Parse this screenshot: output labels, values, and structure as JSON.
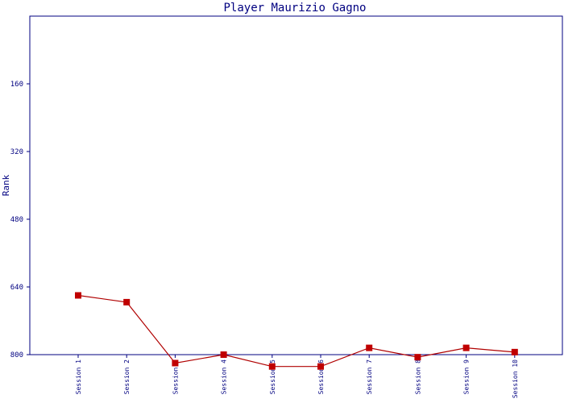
{
  "chart_data": {
    "type": "line",
    "title": "Player Maurizio Gagno",
    "ylabel": "Rank",
    "xlabel": "",
    "y_inverted": true,
    "ylim": [
      0,
      800
    ],
    "yticks": [
      "160",
      "320",
      "480",
      "640",
      "800"
    ],
    "categories": [
      "Session 1",
      "Session 2",
      "Session 3",
      "Session 4",
      "Session 5",
      "Session 6",
      "Session 7",
      "Session 8",
      "Session 9",
      "Session 10"
    ],
    "series": [
      {
        "values": [
          660,
          676,
          820,
          800,
          828,
          828,
          784,
          806,
          784,
          794
        ]
      }
    ],
    "grid": false,
    "colors": {
      "line": "#b00000",
      "marker": "#c00000",
      "axis": "#000080",
      "text": "#000080"
    }
  }
}
